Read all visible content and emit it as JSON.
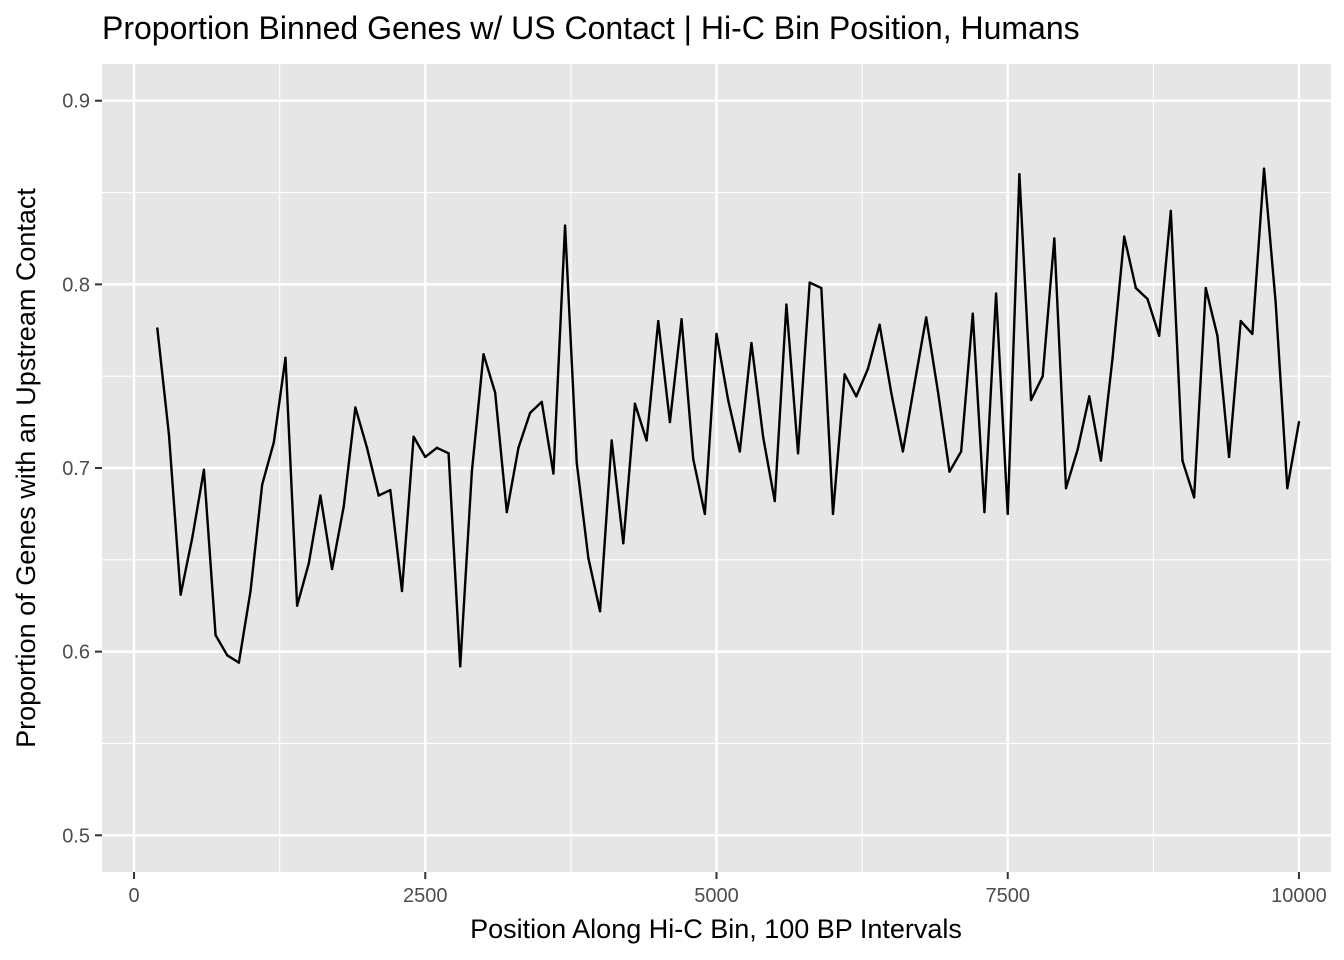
{
  "chart_data": {
    "type": "line",
    "title": "Proportion Binned Genes w/ US Contact | Hi-C Bin Position, Humans",
    "xlabel": "Position Along Hi-C Bin, 100 BP Intervals",
    "ylabel": "Proportion of Genes with an Upstream Contact",
    "xlim": [
      -275,
      10275
    ],
    "ylim": [
      0.48,
      0.92
    ],
    "x_ticks": [
      0,
      2500,
      5000,
      7500,
      10000
    ],
    "x_tick_labels": [
      "0",
      "2500",
      "5000",
      "7500",
      "10000"
    ],
    "y_ticks": [
      0.5,
      0.6,
      0.7,
      0.8,
      0.9
    ],
    "y_tick_labels": [
      "0.5",
      "0.6",
      "0.7",
      "0.8",
      "0.9"
    ],
    "grid": true,
    "panel_color": "#e6e6e6",
    "line_color": "#000000",
    "series": [
      {
        "x": [
          200,
          300,
          400,
          500,
          600,
          700,
          800,
          900,
          1000,
          1100,
          1200,
          1300,
          1400,
          1500,
          1600,
          1700,
          1800,
          1900,
          2000,
          2100,
          2200,
          2300,
          2400,
          2500,
          2600,
          2700,
          2800,
          2900,
          3000,
          3100,
          3200,
          3300,
          3400,
          3500,
          3600,
          3700,
          3800,
          3900,
          4000,
          4100,
          4200,
          4300,
          4400,
          4500,
          4600,
          4700,
          4800,
          4900,
          5000,
          5100,
          5200,
          5300,
          5400,
          5500,
          5600,
          5700,
          5800,
          5900,
          6000,
          6100,
          6200,
          6300,
          6400,
          6500,
          6600,
          6700,
          6800,
          6900,
          7000,
          7100,
          7200,
          7300,
          7400,
          7500,
          7600,
          7700,
          7800,
          7900,
          8000,
          8100,
          8200,
          8300,
          8400,
          8500,
          8600,
          8700,
          8800,
          8900,
          9000,
          9100,
          9200,
          9300,
          9400,
          9500,
          9600,
          9700,
          9800,
          9900,
          10000
        ],
        "values": [
          0.776,
          0.718,
          0.631,
          0.662,
          0.699,
          0.609,
          0.598,
          0.594,
          0.633,
          0.691,
          0.714,
          0.76,
          0.625,
          0.648,
          0.685,
          0.645,
          0.679,
          0.733,
          0.711,
          0.685,
          0.688,
          0.633,
          0.717,
          0.706,
          0.711,
          0.708,
          0.592,
          0.698,
          0.762,
          0.741,
          0.676,
          0.711,
          0.73,
          0.736,
          0.697,
          0.832,
          0.703,
          0.651,
          0.622,
          0.715,
          0.659,
          0.735,
          0.715,
          0.78,
          0.725,
          0.781,
          0.705,
          0.675,
          0.773,
          0.737,
          0.709,
          0.768,
          0.717,
          0.682,
          0.789,
          0.708,
          0.801,
          0.798,
          0.675,
          0.751,
          0.739,
          0.754,
          0.778,
          0.741,
          0.709,
          0.746,
          0.782,
          0.742,
          0.698,
          0.709,
          0.784,
          0.676,
          0.795,
          0.675,
          0.86,
          0.737,
          0.75,
          0.825,
          0.689,
          0.71,
          0.739,
          0.704,
          0.76,
          0.826,
          0.798,
          0.792,
          0.772,
          0.84,
          0.704,
          0.684,
          0.798,
          0.772,
          0.706,
          0.78,
          0.773,
          0.863,
          0.79,
          0.689,
          0.725
        ]
      }
    ]
  }
}
